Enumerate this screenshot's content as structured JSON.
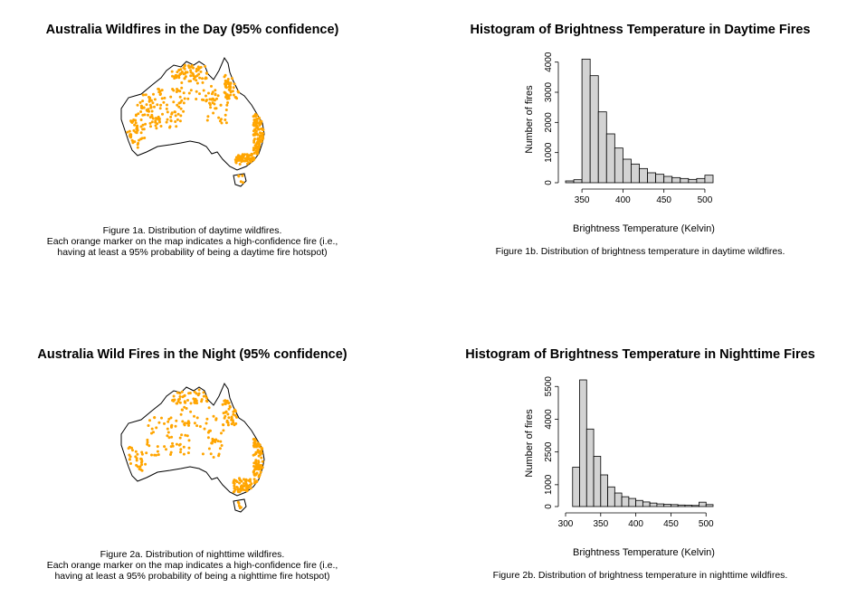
{
  "panels": {
    "map_day": {
      "title": "Australia Wildfires in the Day (95% confidence)",
      "caption_lines": [
        "Figure 1a. Distribution of daytime wildfires.",
        "Each orange marker on the map indicates a high-confidence fire (i.e.,",
        "having at least a 95% probability of being a daytime fire hotspot)"
      ]
    },
    "hist_day": {
      "title": "Histogram of Brightness Temperature in Daytime Fires",
      "caption": "Figure 1b. Distribution of brightness temperature in daytime wildfires."
    },
    "map_night": {
      "title": "Australia Wild Fires in the Night (95% confidence)",
      "caption_lines": [
        "Figure 2a. Distribution of nighttime wildfires.",
        "Each orange marker on the map indicates a high-confidence fire (i.e.,",
        "having at least a 95% probability of being a nighttime fire hotspot)"
      ]
    }
  },
  "colors": {
    "fire_marker": "#FFA500",
    "bar_fill": "#D3D3D3",
    "bar_stroke": "#000000",
    "coastline": "#000000"
  },
  "chart_data": [
    {
      "type": "bar",
      "title": "Histogram of Brightness Temperature in Daytime Fires",
      "xlabel": "Brightness Temperature (Kelvin)",
      "ylabel": "Number of fires",
      "bin_width": 10,
      "bin_starts": [
        330,
        340,
        350,
        360,
        370,
        380,
        390,
        400,
        410,
        420,
        430,
        440,
        450,
        460,
        470,
        480,
        490,
        500
      ],
      "values": [
        60,
        100,
        4100,
        3550,
        2350,
        1620,
        1150,
        780,
        620,
        470,
        330,
        280,
        210,
        170,
        140,
        110,
        140,
        250
      ],
      "xlim": [
        330,
        510
      ],
      "ylim": [
        0,
        4200
      ],
      "xticks": [
        350,
        400,
        450,
        500
      ],
      "yticks": [
        0,
        1000,
        2000,
        3000,
        4000
      ],
      "grid": false
    },
    {
      "type": "bar",
      "title": "Histogram of Brightness Temperature in Nighttime Fires",
      "xlabel": "Brightness Temperature (Kelvin)",
      "ylabel": "Number of fires",
      "bin_width": 10,
      "bin_starts": [
        300,
        310,
        320,
        330,
        340,
        350,
        360,
        370,
        380,
        390,
        400,
        410,
        420,
        430,
        440,
        450,
        460,
        470,
        480,
        490,
        500
      ],
      "values": [
        0,
        1800,
        5800,
        3550,
        2300,
        1450,
        900,
        620,
        450,
        370,
        280,
        210,
        160,
        120,
        100,
        90,
        70,
        60,
        50,
        200,
        90
      ],
      "xlim": [
        300,
        510
      ],
      "ylim": [
        0,
        5800
      ],
      "xticks": [
        300,
        350,
        400,
        450,
        500
      ],
      "yticks": [
        0,
        1000,
        2500,
        4000,
        5500
      ],
      "grid": false
    }
  ],
  "night_hist": {
    "caption": "Figure 2b. Distribution of brightness temperature in nighttime wildfires."
  }
}
